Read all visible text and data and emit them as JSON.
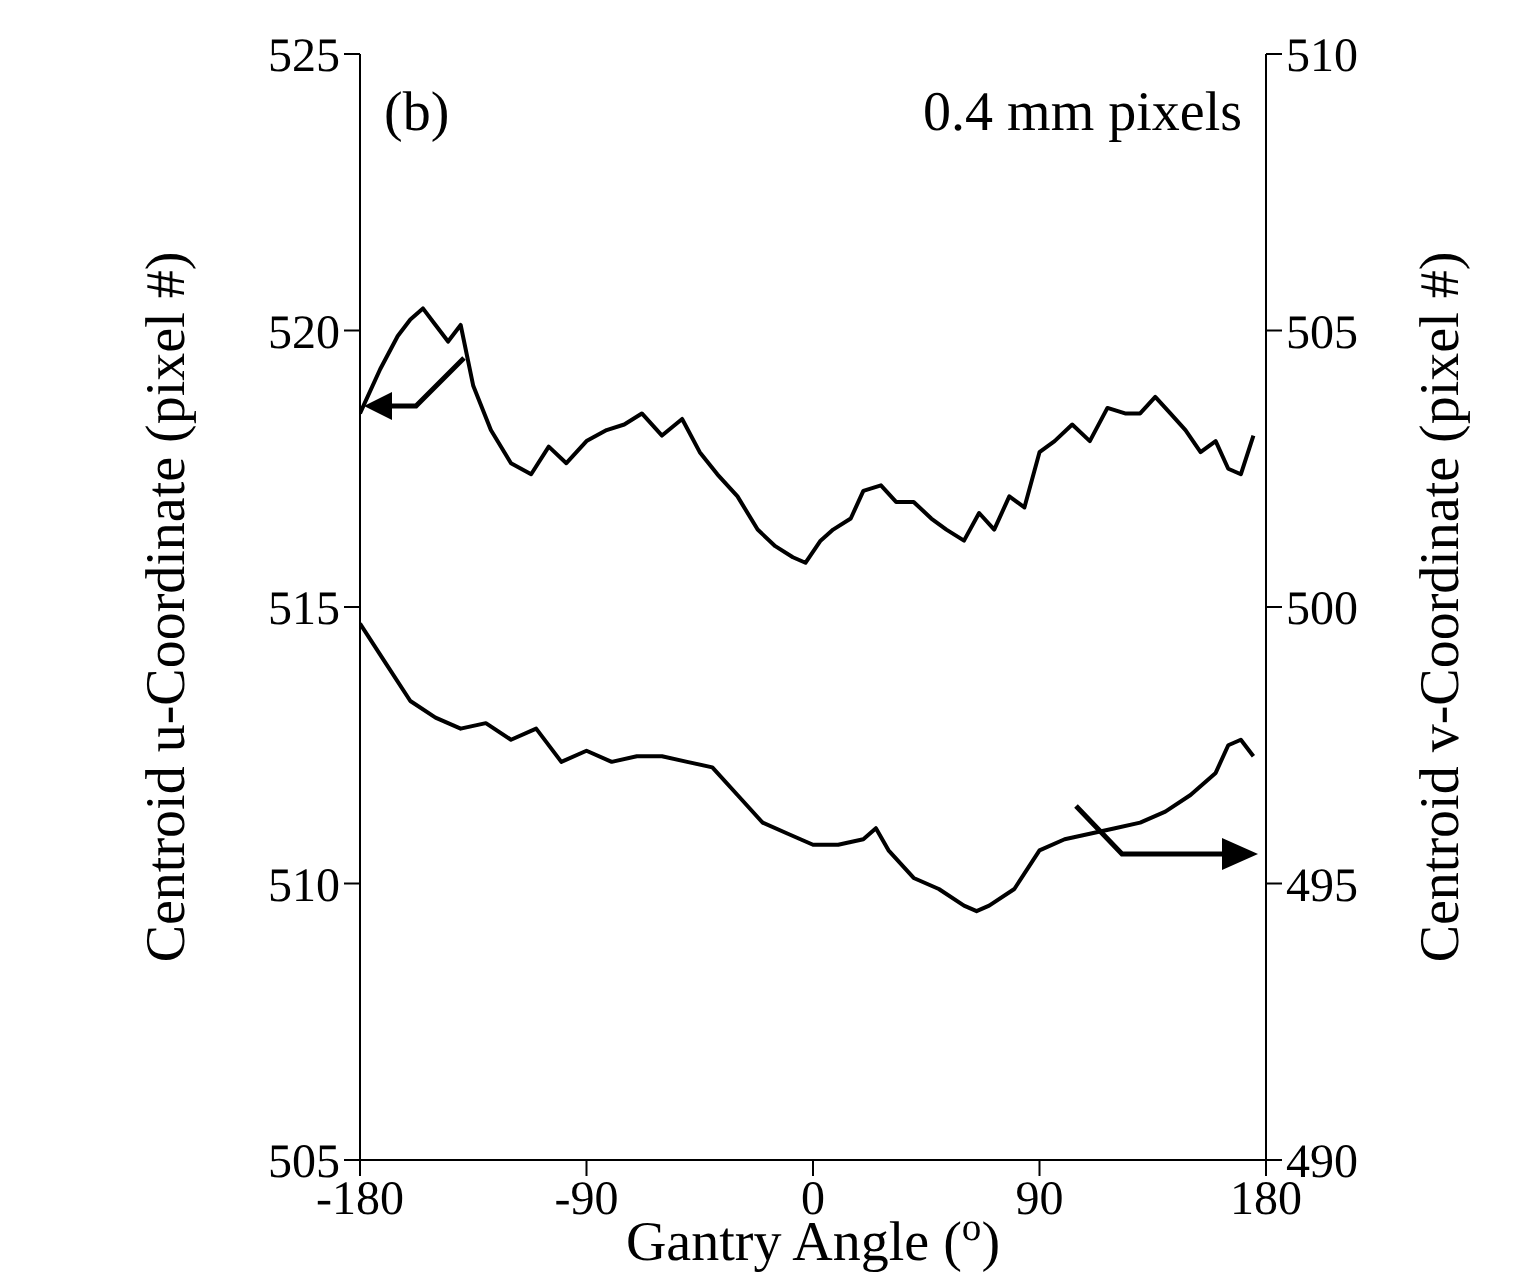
{
  "chart_data": {
    "type": "line",
    "xlabel": "Gantry Angle ($^{o}$)",
    "ylabel": "Centroid u-Coordinate (pixel #)",
    "y2label": "Centroid v-Coordinate (pixel #)",
    "annotations": [
      "(b)",
      "0.4 mm pixels"
    ],
    "xlim": [
      -180,
      180
    ],
    "xticks": [
      -180,
      -90,
      0,
      90,
      180
    ],
    "ylim": [
      505,
      525
    ],
    "yticks": [
      505,
      510,
      515,
      520,
      525
    ],
    "y2lim": [
      490,
      510
    ],
    "y2ticks": [
      490,
      495,
      500,
      505,
      510
    ],
    "series": [
      {
        "color": "#000000",
        "x": [
          -180,
          -172,
          -165,
          -160,
          -155,
          -150,
          -145,
          -140,
          -135,
          -128,
          -120,
          -112,
          -105,
          -98,
          -90,
          -82,
          -75,
          -68,
          -60,
          -52,
          -45,
          -38,
          -30,
          -22,
          -15,
          -8,
          -3,
          3,
          8,
          15,
          20,
          27,
          33,
          40,
          47,
          53,
          60,
          66,
          72,
          78,
          84,
          90,
          96,
          103,
          110,
          117,
          124,
          130,
          136,
          142,
          148,
          154,
          160,
          165,
          170,
          175
        ],
        "values": [
          518.5,
          519.3,
          519.9,
          520.2,
          520.4,
          520.1,
          519.8,
          520.1,
          519.0,
          518.2,
          517.6,
          517.4,
          517.9,
          517.6,
          518.0,
          518.2,
          518.3,
          518.5,
          518.1,
          518.4,
          517.8,
          517.4,
          517.0,
          516.4,
          516.1,
          515.9,
          515.8,
          516.2,
          516.4,
          516.6,
          517.1,
          517.2,
          516.9,
          516.9,
          516.6,
          516.4,
          516.2,
          516.7,
          516.4,
          517.0,
          516.8,
          517.8,
          518.0,
          518.3,
          518.0,
          518.6,
          518.5,
          518.5,
          518.8,
          518.5,
          518.2,
          517.8,
          518.0,
          517.5,
          517.4,
          518.1
        ]
      },
      {
        "color": "#000000",
        "axis": "y2",
        "x": [
          -180,
          -170,
          -160,
          -150,
          -140,
          -130,
          -120,
          -110,
          -100,
          -90,
          -80,
          -70,
          -60,
          -50,
          -40,
          -30,
          -20,
          -10,
          0,
          10,
          20,
          25,
          30,
          40,
          50,
          60,
          65,
          70,
          80,
          90,
          100,
          110,
          120,
          130,
          140,
          150,
          160,
          165,
          170,
          175
        ],
        "values": [
          499.7,
          499.0,
          498.3,
          498.0,
          497.8,
          497.9,
          497.6,
          497.8,
          497.2,
          497.4,
          497.2,
          497.3,
          497.3,
          497.2,
          497.1,
          496.6,
          496.1,
          495.9,
          495.7,
          495.7,
          495.8,
          496.0,
          495.6,
          495.1,
          494.9,
          494.6,
          494.5,
          494.6,
          494.9,
          495.6,
          495.8,
          495.9,
          496.0,
          496.1,
          496.3,
          496.6,
          497.0,
          497.5,
          497.6,
          497.3
        ]
      }
    ]
  }
}
